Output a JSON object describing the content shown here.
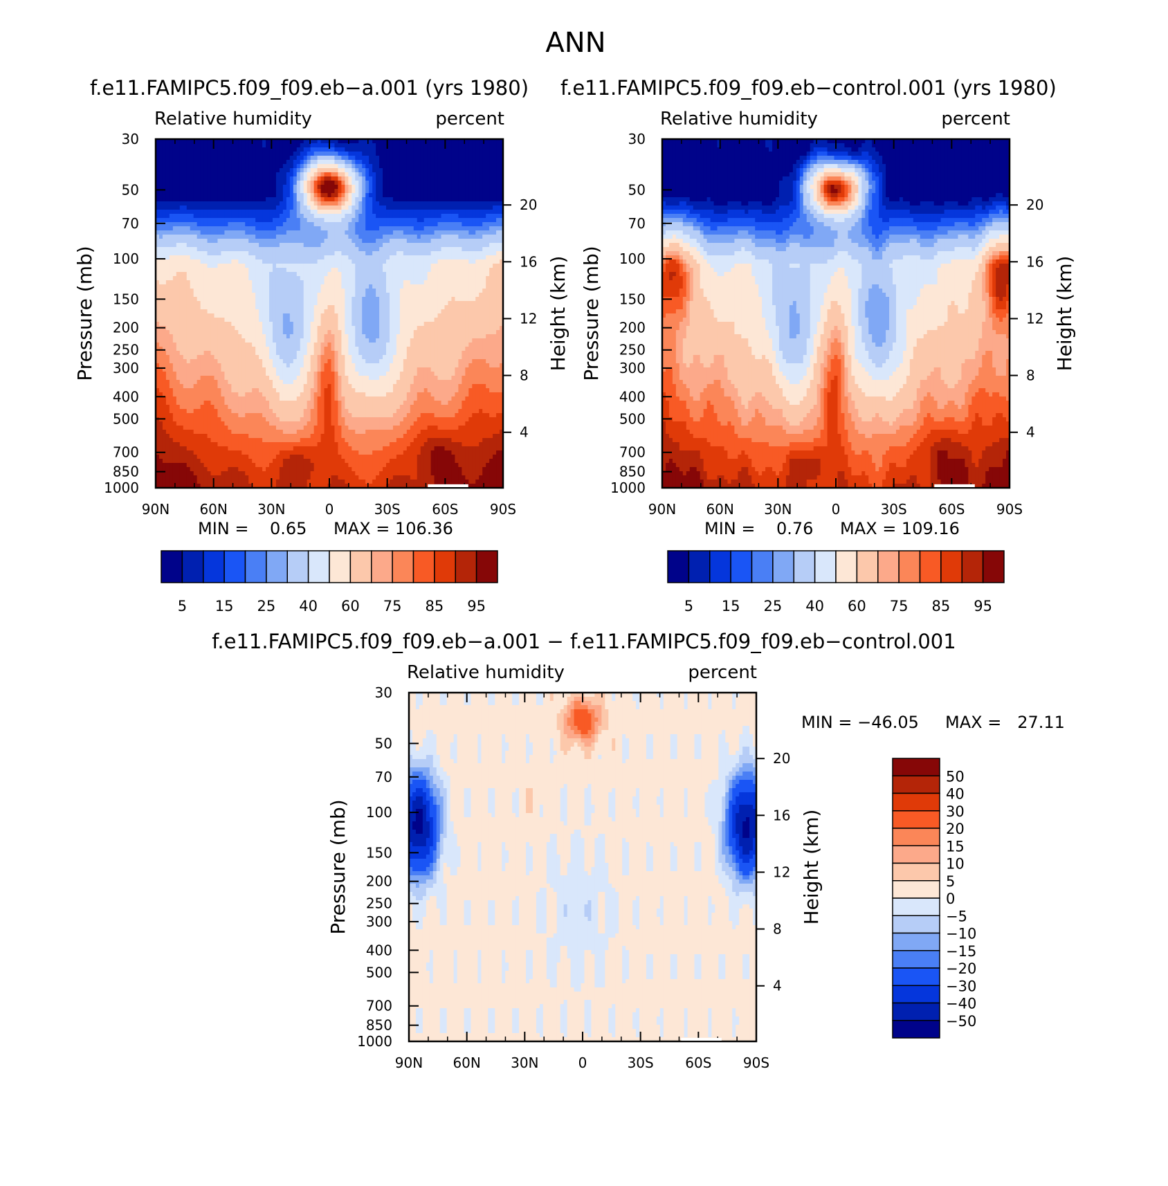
{
  "figure_title": "ANN",
  "colors": {
    "absolute_palette": [
      "#00038a",
      "#0020b0",
      "#0536dc",
      "#1a55f5",
      "#4a7ff5",
      "#80a8f5",
      "#b6cdf7",
      "#d9e7fb",
      "#fde7d6",
      "#fcc8ab",
      "#fca98a",
      "#fb8658",
      "#f85a25",
      "#e03a08",
      "#b42508",
      "#860707"
    ],
    "difference_palette": [
      "#00038a",
      "#0020b0",
      "#0536dc",
      "#1a55f5",
      "#4a7ff5",
      "#80a8f5",
      "#b6cdf7",
      "#d9e7fb",
      "#fde7d6",
      "#fcc8ab",
      "#fca98a",
      "#fb8658",
      "#f85a25",
      "#e03a08",
      "#b42508",
      "#860707"
    ]
  },
  "chart_data": [
    {
      "id": "panel-a",
      "type": "heatmap",
      "title": "f.e11.FAMIPC5.f09_f09.eb−a.001 (yrs 1980)",
      "left_label": "Relative humidity",
      "right_label": "percent",
      "xlabel": "",
      "ylabel": "Pressure (mb)",
      "y2label": "Height (km)",
      "x_ticks": [
        "90N",
        "60N",
        "30N",
        "0",
        "30S",
        "60S",
        "90S"
      ],
      "x_values": [
        90,
        60,
        30,
        0,
        -30,
        -60,
        -90
      ],
      "y_ticks": [
        "30",
        "50",
        "70",
        "100",
        "150",
        "200",
        "250",
        "300",
        "400",
        "500",
        "700",
        "850",
        "1000"
      ],
      "y_values": [
        30,
        50,
        70,
        100,
        150,
        200,
        250,
        300,
        400,
        500,
        700,
        850,
        1000
      ],
      "y2_ticks": [
        "20",
        "16",
        "12",
        "8",
        "4"
      ],
      "y2_values": [
        20,
        16,
        12,
        8,
        4
      ],
      "ylim": [
        30,
        1000
      ],
      "min_text": "MIN =    0.65",
      "max_text": "MAX = 106.36",
      "levels": [
        "5",
        "15",
        "25",
        "40",
        "60",
        "75",
        "85",
        "95"
      ],
      "min": 0.65,
      "max": 106.36
    },
    {
      "id": "panel-control",
      "type": "heatmap",
      "title": "f.e11.FAMIPC5.f09_f09.eb−control.001 (yrs 1980)",
      "left_label": "Relative humidity",
      "right_label": "percent",
      "xlabel": "",
      "ylabel": "Pressure (mb)",
      "y2label": "Height (km)",
      "x_ticks": [
        "90N",
        "60N",
        "30N",
        "0",
        "30S",
        "60S",
        "90S"
      ],
      "x_values": [
        90,
        60,
        30,
        0,
        -30,
        -60,
        -90
      ],
      "y_ticks": [
        "30",
        "50",
        "70",
        "100",
        "150",
        "200",
        "250",
        "300",
        "400",
        "500",
        "700",
        "850",
        "1000"
      ],
      "y_values": [
        30,
        50,
        70,
        100,
        150,
        200,
        250,
        300,
        400,
        500,
        700,
        850,
        1000
      ],
      "y2_ticks": [
        "20",
        "16",
        "12",
        "8",
        "4"
      ],
      "y2_values": [
        20,
        16,
        12,
        8,
        4
      ],
      "ylim": [
        30,
        1000
      ],
      "min_text": "MIN =    0.76",
      "max_text": "MAX = 109.16",
      "levels": [
        "5",
        "15",
        "25",
        "40",
        "60",
        "75",
        "85",
        "95"
      ],
      "min": 0.76,
      "max": 109.16
    },
    {
      "id": "panel-diff",
      "type": "heatmap",
      "title": "f.e11.FAMIPC5.f09_f09.eb−a.001 − f.e11.FAMIPC5.f09_f09.eb−control.001",
      "left_label": "Relative humidity",
      "right_label": "percent",
      "xlabel": "",
      "ylabel": "Pressure (mb)",
      "y2label": "Height (km)",
      "x_ticks": [
        "90N",
        "60N",
        "30N",
        "0",
        "30S",
        "60S",
        "90S"
      ],
      "x_values": [
        90,
        60,
        30,
        0,
        -30,
        -60,
        -90
      ],
      "y_ticks": [
        "30",
        "50",
        "70",
        "100",
        "150",
        "200",
        "250",
        "300",
        "400",
        "500",
        "700",
        "850",
        "1000"
      ],
      "y_values": [
        30,
        50,
        70,
        100,
        150,
        200,
        250,
        300,
        400,
        500,
        700,
        850,
        1000
      ],
      "y2_ticks": [
        "20",
        "16",
        "12",
        "8",
        "4"
      ],
      "y2_values": [
        20,
        16,
        12,
        8,
        4
      ],
      "ylim": [
        30,
        1000
      ],
      "min_text": "MIN = −46.05",
      "max_text": "MAX =   27.11",
      "levels": [
        "50",
        "40",
        "30",
        "20",
        "15",
        "10",
        "5",
        "0",
        "−5",
        "−10",
        "−15",
        "−20",
        "−30",
        "−40",
        "−50"
      ],
      "min": -46.05,
      "max": 27.11
    }
  ]
}
